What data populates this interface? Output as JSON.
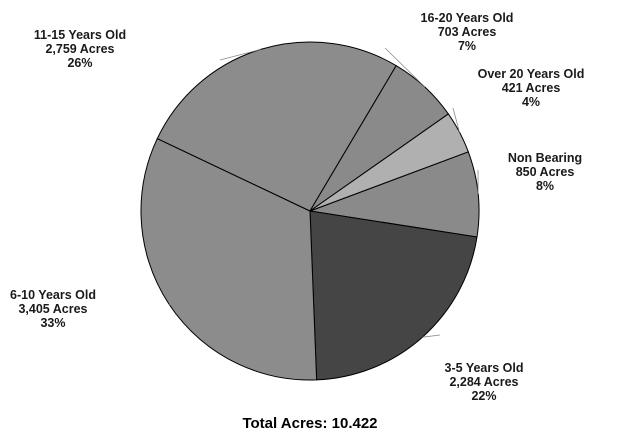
{
  "chart_data": {
    "type": "pie",
    "total_label": "Total Acres: 10.422",
    "slices": [
      {
        "name": "Non Bearing",
        "acres": 850,
        "acres_label": "850 Acres",
        "percent_label": "8%",
        "color": "#8a8a8a"
      },
      {
        "name": "3-5 Years Old",
        "acres": 2284,
        "acres_label": "2,284 Acres",
        "percent_label": "22%",
        "color": "#454545"
      },
      {
        "name": "6-10 Years Old",
        "acres": 3405,
        "acres_label": "3,405 Acres",
        "percent_label": "33%",
        "color": "#8c8c8c"
      },
      {
        "name": "11-15 Years Old",
        "acres": 2759,
        "acres_label": "2,759 Acres",
        "percent_label": "26%",
        "color": "#8c8c8c"
      },
      {
        "name": "16-20 Years Old",
        "acres": 703,
        "acres_label": "703 Acres",
        "percent_label": "7%",
        "color": "#8a8a8a"
      },
      {
        "name": "Over 20 Years Old",
        "acres": 421,
        "acres_label": "421 Acres",
        "percent_label": "4%",
        "color": "#b0b0b0"
      }
    ]
  }
}
